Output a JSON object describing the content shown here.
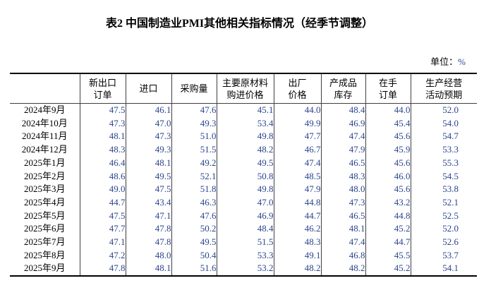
{
  "title": "表2 中国制造业PMI其他相关指标情况（经季节调整）",
  "unit_label": {
    "prefix": "单位：",
    "value": "%"
  },
  "colors": {
    "value_text": "#2b4590",
    "body_text": "#000000",
    "thick_rule": "#000000",
    "thin_rule": "#3f3f3f"
  },
  "table": {
    "columns": [
      {
        "label": ""
      },
      {
        "label": "新出口\n订单"
      },
      {
        "label": "进口"
      },
      {
        "label": "采购量"
      },
      {
        "label": "主要原材料\n购进价格"
      },
      {
        "label": "出厂\n价格"
      },
      {
        "label": "产成品\n库存"
      },
      {
        "label": "在手\n订单"
      },
      {
        "label": "生产经营\n活动预期"
      }
    ],
    "rows": [
      {
        "date": "2024年9月",
        "values": [
          "47.5",
          "46.1",
          "47.6",
          "45.1",
          "44.0",
          "48.4",
          "44.0",
          "52.0"
        ]
      },
      {
        "date": "2024年10月",
        "values": [
          "47.3",
          "47.0",
          "49.3",
          "53.4",
          "49.9",
          "46.9",
          "45.4",
          "54.0"
        ]
      },
      {
        "date": "2024年11月",
        "values": [
          "48.1",
          "47.3",
          "51.0",
          "49.8",
          "47.7",
          "47.4",
          "45.6",
          "54.7"
        ]
      },
      {
        "date": "2024年12月",
        "values": [
          "48.3",
          "49.3",
          "51.5",
          "48.2",
          "46.7",
          "47.9",
          "45.9",
          "53.3"
        ]
      },
      {
        "date": "2025年1月",
        "values": [
          "46.4",
          "48.1",
          "49.2",
          "49.5",
          "47.4",
          "46.5",
          "45.6",
          "55.3"
        ]
      },
      {
        "date": "2025年2月",
        "values": [
          "48.6",
          "49.5",
          "52.1",
          "50.8",
          "48.5",
          "48.3",
          "46.0",
          "54.5"
        ]
      },
      {
        "date": "2025年3月",
        "values": [
          "49.0",
          "47.5",
          "51.8",
          "49.8",
          "47.9",
          "48.0",
          "45.6",
          "53.8"
        ]
      },
      {
        "date": "2025年4月",
        "values": [
          "44.7",
          "43.4",
          "46.3",
          "47.0",
          "44.8",
          "47.3",
          "43.2",
          "52.1"
        ]
      },
      {
        "date": "2025年5月",
        "values": [
          "47.5",
          "47.1",
          "47.6",
          "46.9",
          "44.7",
          "46.5",
          "44.8",
          "52.5"
        ]
      },
      {
        "date": "2025年6月",
        "values": [
          "47.7",
          "47.8",
          "50.2",
          "48.4",
          "46.2",
          "48.1",
          "45.2",
          "52.0"
        ]
      },
      {
        "date": "2025年7月",
        "values": [
          "47.1",
          "47.8",
          "49.5",
          "51.5",
          "48.3",
          "47.4",
          "44.7",
          "52.6"
        ]
      },
      {
        "date": "2025年8月",
        "values": [
          "47.2",
          "48.0",
          "50.4",
          "53.3",
          "49.1",
          "46.8",
          "45.5",
          "53.7"
        ]
      },
      {
        "date": "2025年9月",
        "values": [
          "47.8",
          "48.1",
          "51.6",
          "53.2",
          "48.2",
          "48.2",
          "45.2",
          "54.1"
        ]
      }
    ]
  }
}
